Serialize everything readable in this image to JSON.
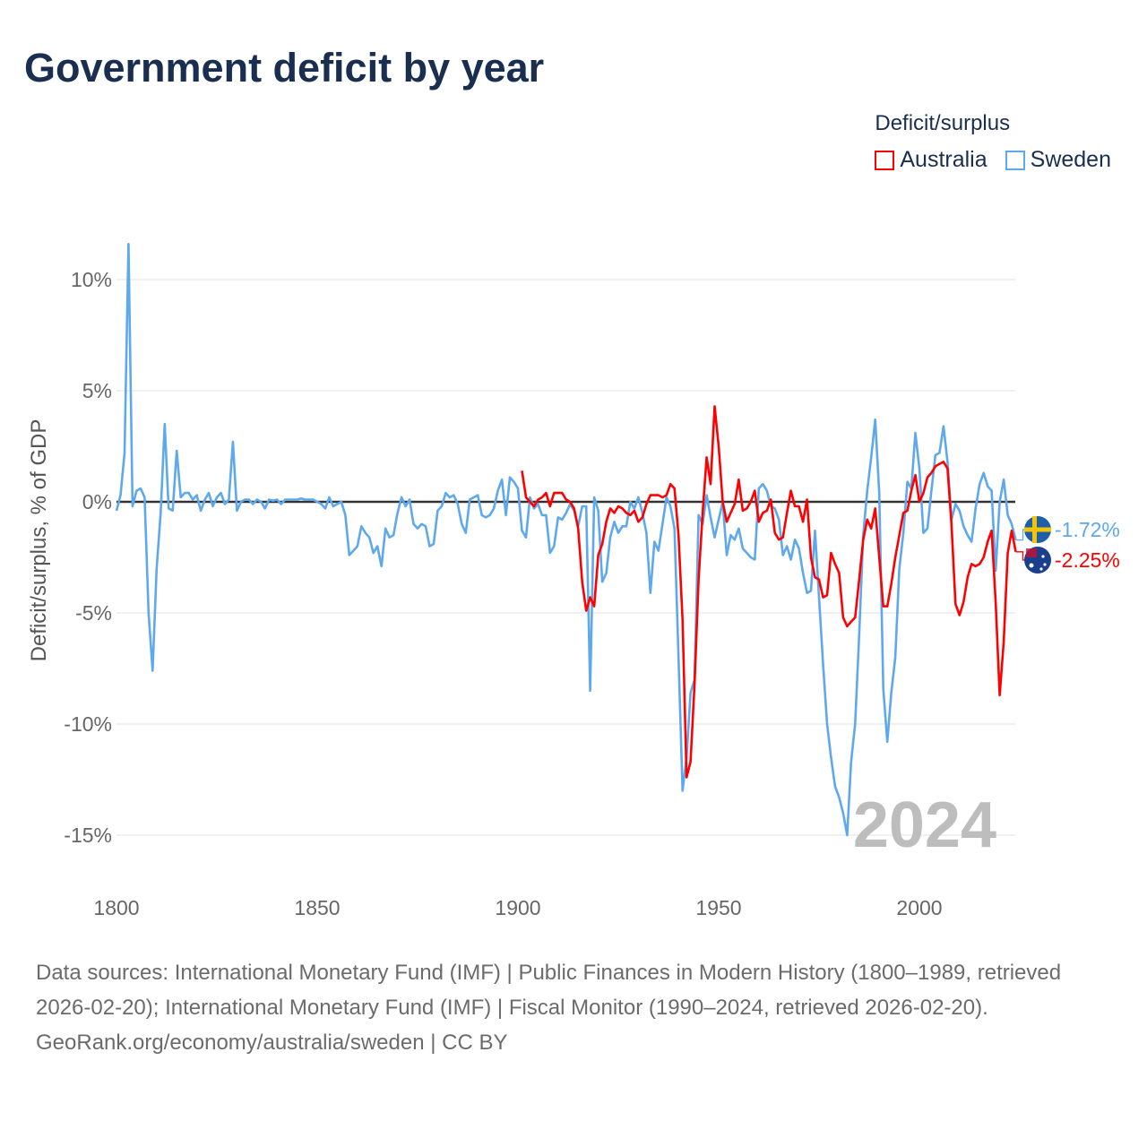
{
  "title": "Government deficit by year",
  "legend": {
    "title": "Deficit/surplus",
    "items": [
      {
        "name": "Australia",
        "color": "#ff0000"
      },
      {
        "name": "Sweden",
        "color": "#5ea8ee"
      }
    ]
  },
  "watermark_year": "2024",
  "footer": {
    "sources": "Data sources: International Monetary Fund (IMF) | Public Finances in Modern History (1800–1989, retrieved 2026-02-20); International Monetary Fund (IMF) | Fiscal Monitor (1990–2024, retrieved 2026-02-20).",
    "credit": "GeoRank.org/economy/australia/sweden | CC BY"
  },
  "chart_data": {
    "type": "line",
    "title": "Government deficit by year",
    "xlabel": "",
    "ylabel": "Deficit/surplus, % of GDP",
    "xlim": [
      1800,
      2024
    ],
    "ylim": [
      -16.5,
      12
    ],
    "xticks": [
      1800,
      1850,
      1900,
      1950,
      2000
    ],
    "xtick_labels": [
      "1800",
      "1850",
      "1900",
      "1950",
      "2000"
    ],
    "yticks": [
      10,
      5,
      0,
      -5,
      -10,
      -15
    ],
    "ytick_labels": [
      "10%",
      "5%",
      "0%",
      "-5%",
      "-10%",
      "-15%"
    ],
    "grid": true,
    "legend_position": "top-right",
    "series": [
      {
        "name": "Sweden",
        "color": "#5ea8ee",
        "start_year": 1800,
        "end_label": "-1.72%",
        "flag": "sweden-flag",
        "values": [
          -0.4,
          0.3,
          2.2,
          11.6,
          -0.2,
          0.5,
          0.6,
          0.2,
          -5,
          -7.6,
          -3,
          -0.5,
          3.5,
          -0.3,
          -0.4,
          2.3,
          0.2,
          0.4,
          0.4,
          0.1,
          0.3,
          -0.4,
          0.1,
          0.4,
          -0.2,
          0.2,
          0.4,
          -0.1,
          0.1,
          2.7,
          -0.4,
          0,
          0.1,
          0.1,
          -0.1,
          0.1,
          0,
          -0.3,
          0.1,
          0.05,
          0.1,
          -0.1,
          0.1,
          0.1,
          0.1,
          0.1,
          0.15,
          0.1,
          0.1,
          0.1,
          0,
          -0.1,
          -0.3,
          0.2,
          -0.2,
          -0.1,
          0,
          -0.6,
          -2.4,
          -2.2,
          -2.0,
          -1.1,
          -1.4,
          -1.6,
          -2.3,
          -2.0,
          -2.9,
          -1.2,
          -1.6,
          -1.5,
          -0.5,
          0.2,
          -0.2,
          0.1,
          -1.0,
          -1.2,
          -1.0,
          -1.1,
          -2.0,
          -1.9,
          -0.4,
          -0.2,
          0.4,
          0.2,
          0.3,
          -0.1,
          -1.0,
          -1.4,
          0.1,
          0.2,
          0.3,
          -0.6,
          -0.7,
          -0.6,
          -0.3,
          0.5,
          1.0,
          -0.6,
          1.1,
          0.9,
          0.6,
          -1.3,
          -1.6,
          0.2,
          -0.3,
          -0.1,
          -0.6,
          -0.6,
          -2.3,
          -2.0,
          -0.7,
          -0.8,
          -0.5,
          -0.1,
          -0.4,
          -1.1,
          -0.2,
          -0.2,
          -8.5,
          0.2,
          -0.4,
          -3.6,
          -3.2,
          -1.6,
          -0.9,
          -1.4,
          -1.1,
          -1.1,
          0,
          -0.3,
          0.2,
          -0.5,
          -1.4,
          -4.1,
          -1.8,
          -2.2,
          -1.0,
          0.2,
          -0.2,
          -1.2,
          -7,
          -13,
          -11.5,
          -8.6,
          -8,
          -0.6,
          -1,
          0.3,
          -0.7,
          -1.6,
          -0.8,
          0,
          -2.4,
          -1.5,
          -1.7,
          -1.2,
          -2.1,
          -2.3,
          -2.5,
          -2.6,
          0.6,
          0.8,
          0.5,
          -0.2,
          -0.3,
          -0.8,
          -2.4,
          -2.0,
          -2.6,
          -1.7,
          -2.1,
          -3.2,
          -4.1,
          -4.0,
          -1.3,
          -4.3,
          -7.3,
          -10.0,
          -11.5,
          -12.8,
          -13.3,
          -14.0,
          -15.0,
          -11.7,
          -10,
          -6,
          -1.5,
          0.5,
          2,
          3.7,
          0.4,
          -8.4,
          -10.8,
          -8.6,
          -7,
          -3,
          -1.4,
          0.9,
          0.6,
          3.1,
          1.5,
          -1.4,
          -1.2,
          0.5,
          2.1,
          2.2,
          3.4,
          1.8,
          -0.8,
          -0.1,
          -0.4,
          -1.1,
          -1.5,
          -1.8,
          -0.3,
          0.8,
          1.3,
          0.7,
          0.5,
          -3.1,
          0,
          1.0,
          -0.6,
          -1.0,
          -1.72
        ]
      },
      {
        "name": "Australia",
        "color": "#ff0000",
        "start_year": 1901,
        "end_label": "-2.25%",
        "flag": "australia-flag",
        "values": [
          1.4,
          0.2,
          0,
          -0.2,
          0.1,
          0.2,
          0.4,
          -0.2,
          0.4,
          0.4,
          0.4,
          0.1,
          0,
          -0.3,
          -1.2,
          -3.6,
          -4.9,
          -4.3,
          -4.7,
          -2.4,
          -1.9,
          -0.9,
          -0.3,
          -0.5,
          -0.2,
          -0.3,
          -0.5,
          -0.6,
          -0.4,
          -0.9,
          -0.7,
          -0.1,
          0.3,
          0.3,
          0.3,
          0.2,
          0.3,
          0.8,
          0.6,
          -1.5,
          -5.3,
          -12.4,
          -11.7,
          -8.2,
          -3.5,
          -0.5,
          2.0,
          0.8,
          4.3,
          2.5,
          0,
          -0.9,
          -0.5,
          -0.1,
          1.0,
          -0.4,
          -0.3,
          0,
          0.5,
          -0.9,
          -0.5,
          -0.4,
          0.1,
          -1.4,
          -1.7,
          -1.6,
          -0.5,
          0.5,
          -0.2,
          -0.2,
          -0.9,
          0.1,
          -2.5,
          -3.4,
          -3.5,
          -4.3,
          -4.2,
          -2.3,
          -2.8,
          -3.2,
          -5.2,
          -5.6,
          -5.4,
          -5.2,
          -3.5,
          -1.7,
          -0.8,
          -1.2,
          -0.3,
          -2.5,
          -4.7,
          -4.7,
          -3.7,
          -2.5,
          -1.5,
          -0.5,
          -0.4,
          0.5,
          1.2,
          0,
          0.4,
          1.1,
          1.3,
          1.6,
          1.7,
          1.8,
          1.5,
          -1.0,
          -4.6,
          -5.1,
          -4.5,
          -3.4,
          -2.8,
          -2.9,
          -2.8,
          -2.5,
          -1.8,
          -1.3,
          -4.5,
          -8.7,
          -6.3,
          -2.3,
          -1.3,
          -2.25
        ]
      }
    ]
  }
}
